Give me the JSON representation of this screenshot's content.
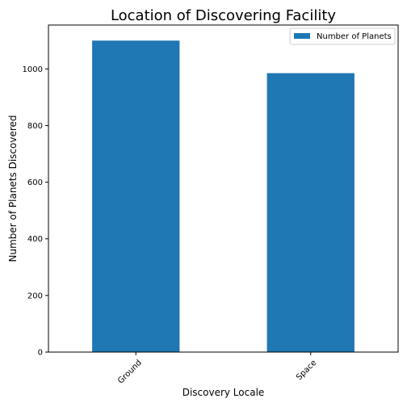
{
  "chart_data": {
    "type": "bar",
    "title": "Location of Discovering Facility",
    "xlabel": "Discovery Locale",
    "ylabel": "Number of Planets Discovered",
    "categories": [
      "Ground",
      "Space"
    ],
    "series": [
      {
        "name": "Number of Planets",
        "values": [
          1100,
          985
        ],
        "color": "#1f77b4"
      }
    ],
    "ylim": [
      0,
      1155
    ],
    "yticks": [
      0,
      200,
      400,
      600,
      800,
      1000
    ],
    "legend_position": "top-right",
    "grid": false
  }
}
